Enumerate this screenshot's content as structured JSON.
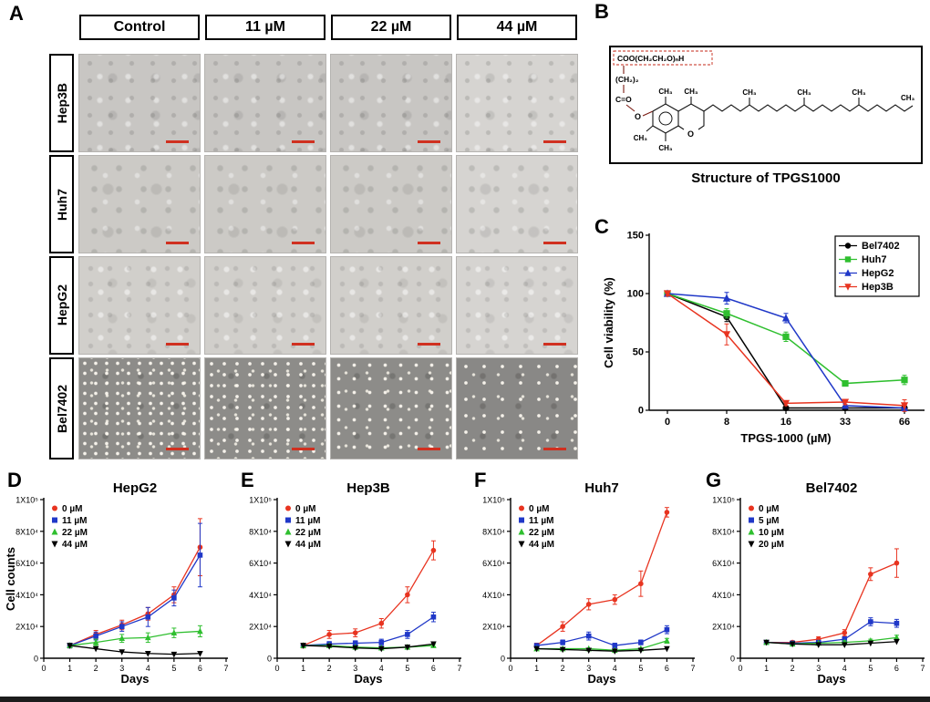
{
  "panels": {
    "A": "A",
    "B": "B",
    "C": "C",
    "D": "D",
    "E": "E",
    "F": "F",
    "G": "G"
  },
  "panel_a": {
    "col_headers": [
      "Control",
      "11 µM",
      "22 µM",
      "44 µM"
    ],
    "row_labels": [
      "Hep3B",
      "Huh7",
      "HepG2",
      "Bel7402"
    ]
  },
  "panel_b": {
    "caption": "Structure of TPGS1000",
    "labels": {
      "ester": "COO(CH₂CH₂O)ₙH",
      "ch2": "(CH₂)₂",
      "co": "C=O",
      "o": "O",
      "ch3": "CH₃"
    }
  },
  "chart_data": [
    {
      "id": "chart-c",
      "type": "line",
      "categories": [
        "0",
        "8",
        "16",
        "33",
        "66"
      ],
      "xlabel": "TPGS-1000 (µM)",
      "ylabel": "Cell viability (%)",
      "ylim": [
        0,
        150
      ],
      "yticks": [
        0,
        50,
        100,
        150
      ],
      "ytick_labels": [
        "0",
        "50",
        "100",
        "150"
      ],
      "margins": {
        "l": 52,
        "r": 4,
        "t": 8,
        "b": 40
      },
      "xpad": 20,
      "tick_size": 11,
      "tick_bold": true,
      "marker_size": 3.6,
      "line_w": 1.5,
      "legend": {
        "pos": "tr",
        "w": 92,
        "line": true
      },
      "series": [
        {
          "name": "Bel7402",
          "color": "#000000",
          "marker": "circle",
          "values": [
            100,
            80,
            2,
            2,
            2
          ],
          "err": [
            2,
            4,
            1,
            1,
            1
          ]
        },
        {
          "name": "Huh7",
          "color": "#2fbf2f",
          "marker": "square",
          "values": [
            100,
            83,
            63,
            23,
            26
          ],
          "err": [
            2,
            4,
            4,
            2,
            4
          ]
        },
        {
          "name": "HepG2",
          "color": "#2038c8",
          "marker": "triangle-up",
          "values": [
            100,
            96,
            79,
            4,
            2
          ],
          "err": [
            2,
            5,
            4,
            1,
            1
          ]
        },
        {
          "name": "Hep3B",
          "color": "#e83420",
          "marker": "triangle-down",
          "values": [
            100,
            65,
            6,
            7,
            4
          ],
          "err": [
            2,
            9,
            2,
            2,
            5
          ]
        }
      ]
    },
    {
      "id": "chart-d",
      "type": "line",
      "title": "HepG2",
      "x": [
        1,
        2,
        3,
        4,
        5,
        6
      ],
      "xlim": [
        0,
        7
      ],
      "xticks": [
        0,
        1,
        2,
        3,
        4,
        5,
        6,
        7
      ],
      "xlabel": "Days",
      "ylabel": "Cell counts",
      "ylim": [
        0,
        100000
      ],
      "yticks": [
        0,
        20000,
        40000,
        60000,
        80000,
        100000
      ],
      "ytick_labels": [
        "0",
        "2X10⁴",
        "4X10⁴",
        "6X10⁴",
        "8X10⁴",
        "1X10⁵"
      ],
      "margins": {
        "l": 44,
        "r": 6,
        "t": 24,
        "b": 32
      },
      "tick_size": 9,
      "marker_size": 2.8,
      "line_w": 1.3,
      "legend": {
        "pos": "tl"
      },
      "series": [
        {
          "name": "0 µM",
          "color": "#e83420",
          "marker": "circle",
          "values": [
            8000,
            15000,
            21000,
            28000,
            40000,
            70000
          ],
          "err": [
            1500,
            2500,
            3000,
            4000,
            5000,
            18000
          ]
        },
        {
          "name": "11 µM",
          "color": "#2038c8",
          "marker": "square",
          "values": [
            8000,
            14000,
            20000,
            26000,
            38000,
            65000
          ],
          "err": [
            1500,
            2500,
            3000,
            6000,
            5000,
            20000
          ]
        },
        {
          "name": "22 µM",
          "color": "#2fbf2f",
          "marker": "triangle-up",
          "values": [
            8000,
            10000,
            12500,
            13000,
            16000,
            17000
          ],
          "err": [
            1000,
            2000,
            2500,
            3000,
            3000,
            3500
          ]
        },
        {
          "name": "44 µM",
          "color": "#000000",
          "marker": "triangle-down",
          "values": [
            8000,
            6000,
            4000,
            3000,
            2500,
            3000
          ],
          "err": [
            800,
            800,
            800,
            800,
            800,
            800
          ]
        }
      ]
    },
    {
      "id": "chart-e",
      "type": "line",
      "title": "Hep3B",
      "x": [
        1,
        2,
        3,
        4,
        5,
        6
      ],
      "xlim": [
        0,
        7
      ],
      "xticks": [
        0,
        1,
        2,
        3,
        4,
        5,
        6,
        7
      ],
      "xlabel": "Days",
      "ylabel": "",
      "ylim": [
        0,
        100000
      ],
      "yticks": [
        0,
        20000,
        40000,
        60000,
        80000,
        100000
      ],
      "ytick_labels": [
        "0",
        "2X10⁴",
        "4X10⁴",
        "6X10⁴",
        "8X10⁴",
        "1X10⁵"
      ],
      "margins": {
        "l": 44,
        "r": 6,
        "t": 24,
        "b": 32
      },
      "tick_size": 9,
      "marker_size": 2.8,
      "line_w": 1.3,
      "legend": {
        "pos": "tl"
      },
      "series": [
        {
          "name": "0 µM",
          "color": "#e83420",
          "marker": "circle",
          "values": [
            8000,
            15000,
            16000,
            22000,
            40000,
            68000
          ],
          "err": [
            1500,
            2500,
            2500,
            3000,
            5000,
            6000
          ]
        },
        {
          "name": "11 µM",
          "color": "#2038c8",
          "marker": "square",
          "values": [
            8000,
            9000,
            9500,
            10000,
            15000,
            26000
          ],
          "err": [
            1000,
            1500,
            1500,
            2000,
            2500,
            3000
          ]
        },
        {
          "name": "22 µM",
          "color": "#2fbf2f",
          "marker": "triangle-up",
          "values": [
            8000,
            8000,
            7000,
            6500,
            7000,
            8000
          ],
          "err": [
            800,
            800,
            800,
            800,
            800,
            1000
          ]
        },
        {
          "name": "44 µM",
          "color": "#000000",
          "marker": "triangle-down",
          "values": [
            8000,
            7500,
            6500,
            6000,
            7000,
            9000
          ],
          "err": [
            500,
            500,
            500,
            500,
            500,
            800
          ]
        }
      ]
    },
    {
      "id": "chart-f",
      "type": "line",
      "title": "Huh7",
      "x": [
        1,
        2,
        3,
        4,
        5,
        6
      ],
      "xlim": [
        0,
        7
      ],
      "xticks": [
        0,
        1,
        2,
        3,
        4,
        5,
        6,
        7
      ],
      "xlabel": "Days",
      "ylabel": "",
      "ylim": [
        0,
        100000
      ],
      "yticks": [
        0,
        20000,
        40000,
        60000,
        80000,
        100000
      ],
      "ytick_labels": [
        "0",
        "2X10⁴",
        "4X10⁴",
        "6X10⁴",
        "8X10⁴",
        "1X10⁵"
      ],
      "margins": {
        "l": 44,
        "r": 6,
        "t": 24,
        "b": 32
      },
      "tick_size": 9,
      "marker_size": 2.8,
      "line_w": 1.3,
      "legend": {
        "pos": "tl"
      },
      "series": [
        {
          "name": "0 µM",
          "color": "#e83420",
          "marker": "circle",
          "values": [
            8000,
            20000,
            34000,
            37000,
            47000,
            92000
          ],
          "err": [
            1500,
            3000,
            3500,
            3000,
            8000,
            3000
          ]
        },
        {
          "name": "11 µM",
          "color": "#2038c8",
          "marker": "square",
          "values": [
            8000,
            10000,
            14000,
            8000,
            10000,
            18000
          ],
          "err": [
            1000,
            1500,
            2500,
            1500,
            1500,
            2500
          ]
        },
        {
          "name": "22 µM",
          "color": "#2fbf2f",
          "marker": "triangle-up",
          "values": [
            6000,
            6000,
            6000,
            5000,
            6000,
            11000
          ],
          "err": [
            800,
            800,
            800,
            800,
            800,
            1500
          ]
        },
        {
          "name": "44 µM",
          "color": "#000000",
          "marker": "triangle-down",
          "values": [
            6000,
            5500,
            5000,
            4500,
            5000,
            6000
          ],
          "err": [
            500,
            500,
            500,
            500,
            500,
            500
          ]
        }
      ]
    },
    {
      "id": "chart-g",
      "type": "line",
      "title": "Bel7402",
      "x": [
        1,
        2,
        3,
        4,
        5,
        6
      ],
      "xlim": [
        0,
        7
      ],
      "xticks": [
        0,
        1,
        2,
        3,
        4,
        5,
        6,
        7
      ],
      "xlabel": "Days",
      "ylabel": "",
      "ylim": [
        0,
        100000
      ],
      "yticks": [
        0,
        20000,
        40000,
        60000,
        80000,
        100000
      ],
      "ytick_labels": [
        "0",
        "2X10⁴",
        "4X10⁴",
        "6X10⁴",
        "8X10⁴",
        "1X10⁵"
      ],
      "margins": {
        "l": 44,
        "r": 6,
        "t": 24,
        "b": 32
      },
      "tick_size": 9,
      "marker_size": 2.8,
      "line_w": 1.3,
      "legend": {
        "pos": "tl"
      },
      "series": [
        {
          "name": "0 µM",
          "color": "#e83420",
          "marker": "circle",
          "values": [
            10000,
            10000,
            12000,
            16000,
            53000,
            60000
          ],
          "err": [
            1000,
            1000,
            1500,
            2000,
            4000,
            9000
          ]
        },
        {
          "name": "5 µM",
          "color": "#2038c8",
          "marker": "square",
          "values": [
            10000,
            9500,
            10000,
            12000,
            23000,
            22000
          ],
          "err": [
            1000,
            1000,
            1000,
            1500,
            2500,
            2500
          ]
        },
        {
          "name": "10 µM",
          "color": "#2fbf2f",
          "marker": "triangle-up",
          "values": [
            10000,
            9000,
            9500,
            10000,
            11000,
            13000
          ],
          "err": [
            800,
            800,
            800,
            1000,
            1000,
            1500
          ]
        },
        {
          "name": "20 µM",
          "color": "#000000",
          "marker": "triangle-down",
          "values": [
            10000,
            9000,
            8500,
            8500,
            9500,
            10500
          ],
          "err": [
            500,
            500,
            500,
            500,
            800,
            800
          ]
        }
      ]
    }
  ]
}
